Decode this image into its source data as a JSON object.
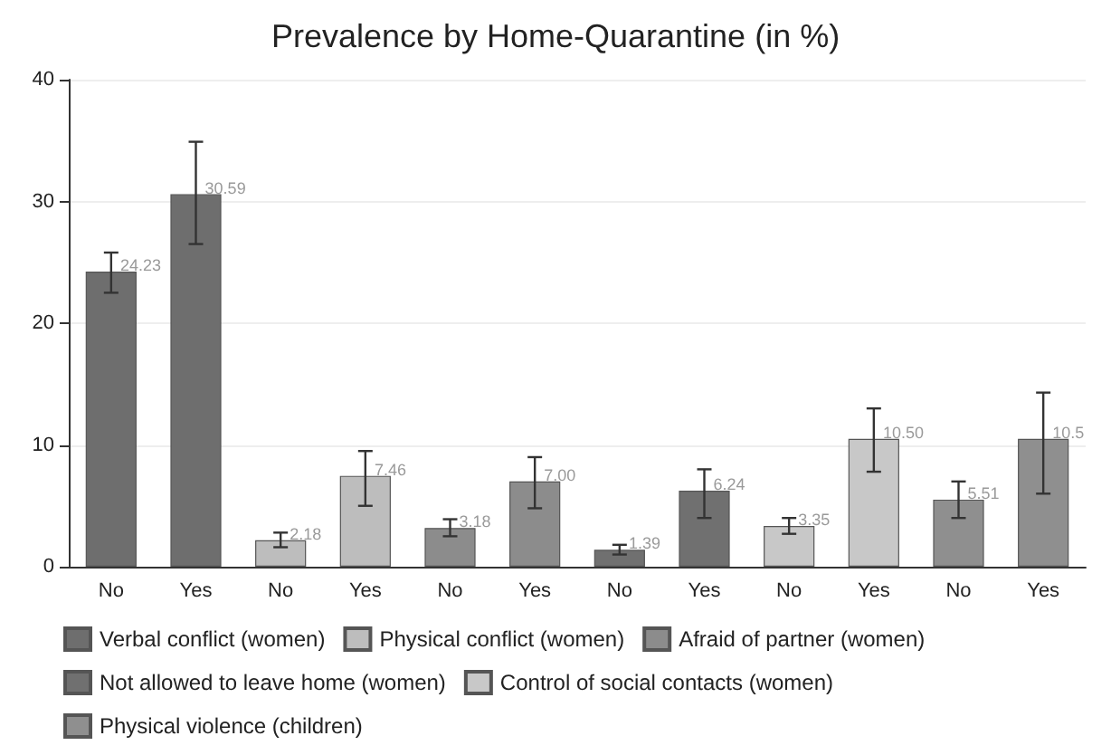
{
  "chart_data": {
    "type": "bar",
    "title": "Prevalence by Home-Quarantine (in %)",
    "categories": [
      "No",
      "Yes",
      "No",
      "Yes",
      "No",
      "Yes",
      "No",
      "Yes",
      "No",
      "Yes",
      "No",
      "Yes"
    ],
    "series": [
      {
        "name": "Verbal conflict (women)",
        "color": "#6e6e6e",
        "values": [
          24.23,
          30.59,
          null,
          null,
          null,
          null,
          null,
          null,
          null,
          null,
          null,
          null
        ],
        "errors": [
          [
            22.5,
            25.8
          ],
          [
            26.5,
            34.9
          ],
          null,
          null,
          null,
          null,
          null,
          null,
          null,
          null,
          null,
          null
        ],
        "value_labels": [
          "24.23",
          "30.59",
          null,
          null,
          null,
          null,
          null,
          null,
          null,
          null,
          null,
          null
        ]
      },
      {
        "name": "Physical conflict (women)",
        "color": "#bdbdbd",
        "values": [
          null,
          null,
          2.18,
          7.46,
          null,
          null,
          null,
          null,
          null,
          null,
          null,
          null
        ],
        "errors": [
          null,
          null,
          [
            1.6,
            2.8
          ],
          [
            5,
            9.5
          ],
          null,
          null,
          null,
          null,
          null,
          null,
          null,
          null
        ],
        "value_labels": [
          null,
          null,
          "2.18",
          "7.46",
          null,
          null,
          null,
          null,
          null,
          null,
          null,
          null
        ]
      },
      {
        "name": "Afraid of partner (women)",
        "color": "#8c8c8c",
        "values": [
          null,
          null,
          null,
          null,
          3.18,
          7.0,
          null,
          null,
          null,
          null,
          null,
          null
        ],
        "errors": [
          null,
          null,
          null,
          null,
          [
            2.5,
            3.9
          ],
          [
            4.8,
            9
          ],
          null,
          null,
          null,
          null,
          null,
          null
        ],
        "value_labels": [
          null,
          null,
          null,
          null,
          "3.18",
          "7.00",
          null,
          null,
          null,
          null,
          null,
          null
        ]
      },
      {
        "name": "Not allowed to leave home (women)",
        "color": "#707070",
        "values": [
          null,
          null,
          null,
          null,
          null,
          null,
          1.39,
          6.24,
          null,
          null,
          null,
          null
        ],
        "errors": [
          null,
          null,
          null,
          null,
          null,
          null,
          [
            1,
            1.8
          ],
          [
            4,
            8
          ],
          null,
          null,
          null,
          null
        ],
        "value_labels": [
          null,
          null,
          null,
          null,
          null,
          null,
          "1.39",
          "6.24",
          null,
          null,
          null,
          null
        ]
      },
      {
        "name": "Control of social contacts (women)",
        "color": "#c8c8c8",
        "values": [
          null,
          null,
          null,
          null,
          null,
          null,
          null,
          null,
          3.35,
          10.5,
          null,
          null
        ],
        "errors": [
          null,
          null,
          null,
          null,
          null,
          null,
          null,
          null,
          [
            2.7,
            4
          ],
          [
            7.8,
            13
          ],
          null,
          null
        ],
        "value_labels": [
          null,
          null,
          null,
          null,
          null,
          null,
          null,
          null,
          "3.35",
          "10.50",
          null,
          null
        ]
      },
      {
        "name": "Physical violence (children)",
        "color": "#8f8f8f",
        "values": [
          null,
          null,
          null,
          null,
          null,
          null,
          null,
          null,
          null,
          null,
          5.51,
          10.5
        ],
        "errors": [
          null,
          null,
          null,
          null,
          null,
          null,
          null,
          null,
          null,
          null,
          [
            4,
            7
          ],
          [
            6,
            14.3
          ]
        ],
        "value_labels": [
          null,
          null,
          null,
          null,
          null,
          null,
          null,
          null,
          null,
          null,
          "5.51",
          "10.5"
        ]
      }
    ],
    "ylim": [
      0,
      40
    ],
    "yticks": [
      0,
      10,
      20,
      30,
      40
    ],
    "grid": "y",
    "legend": "bottom"
  }
}
